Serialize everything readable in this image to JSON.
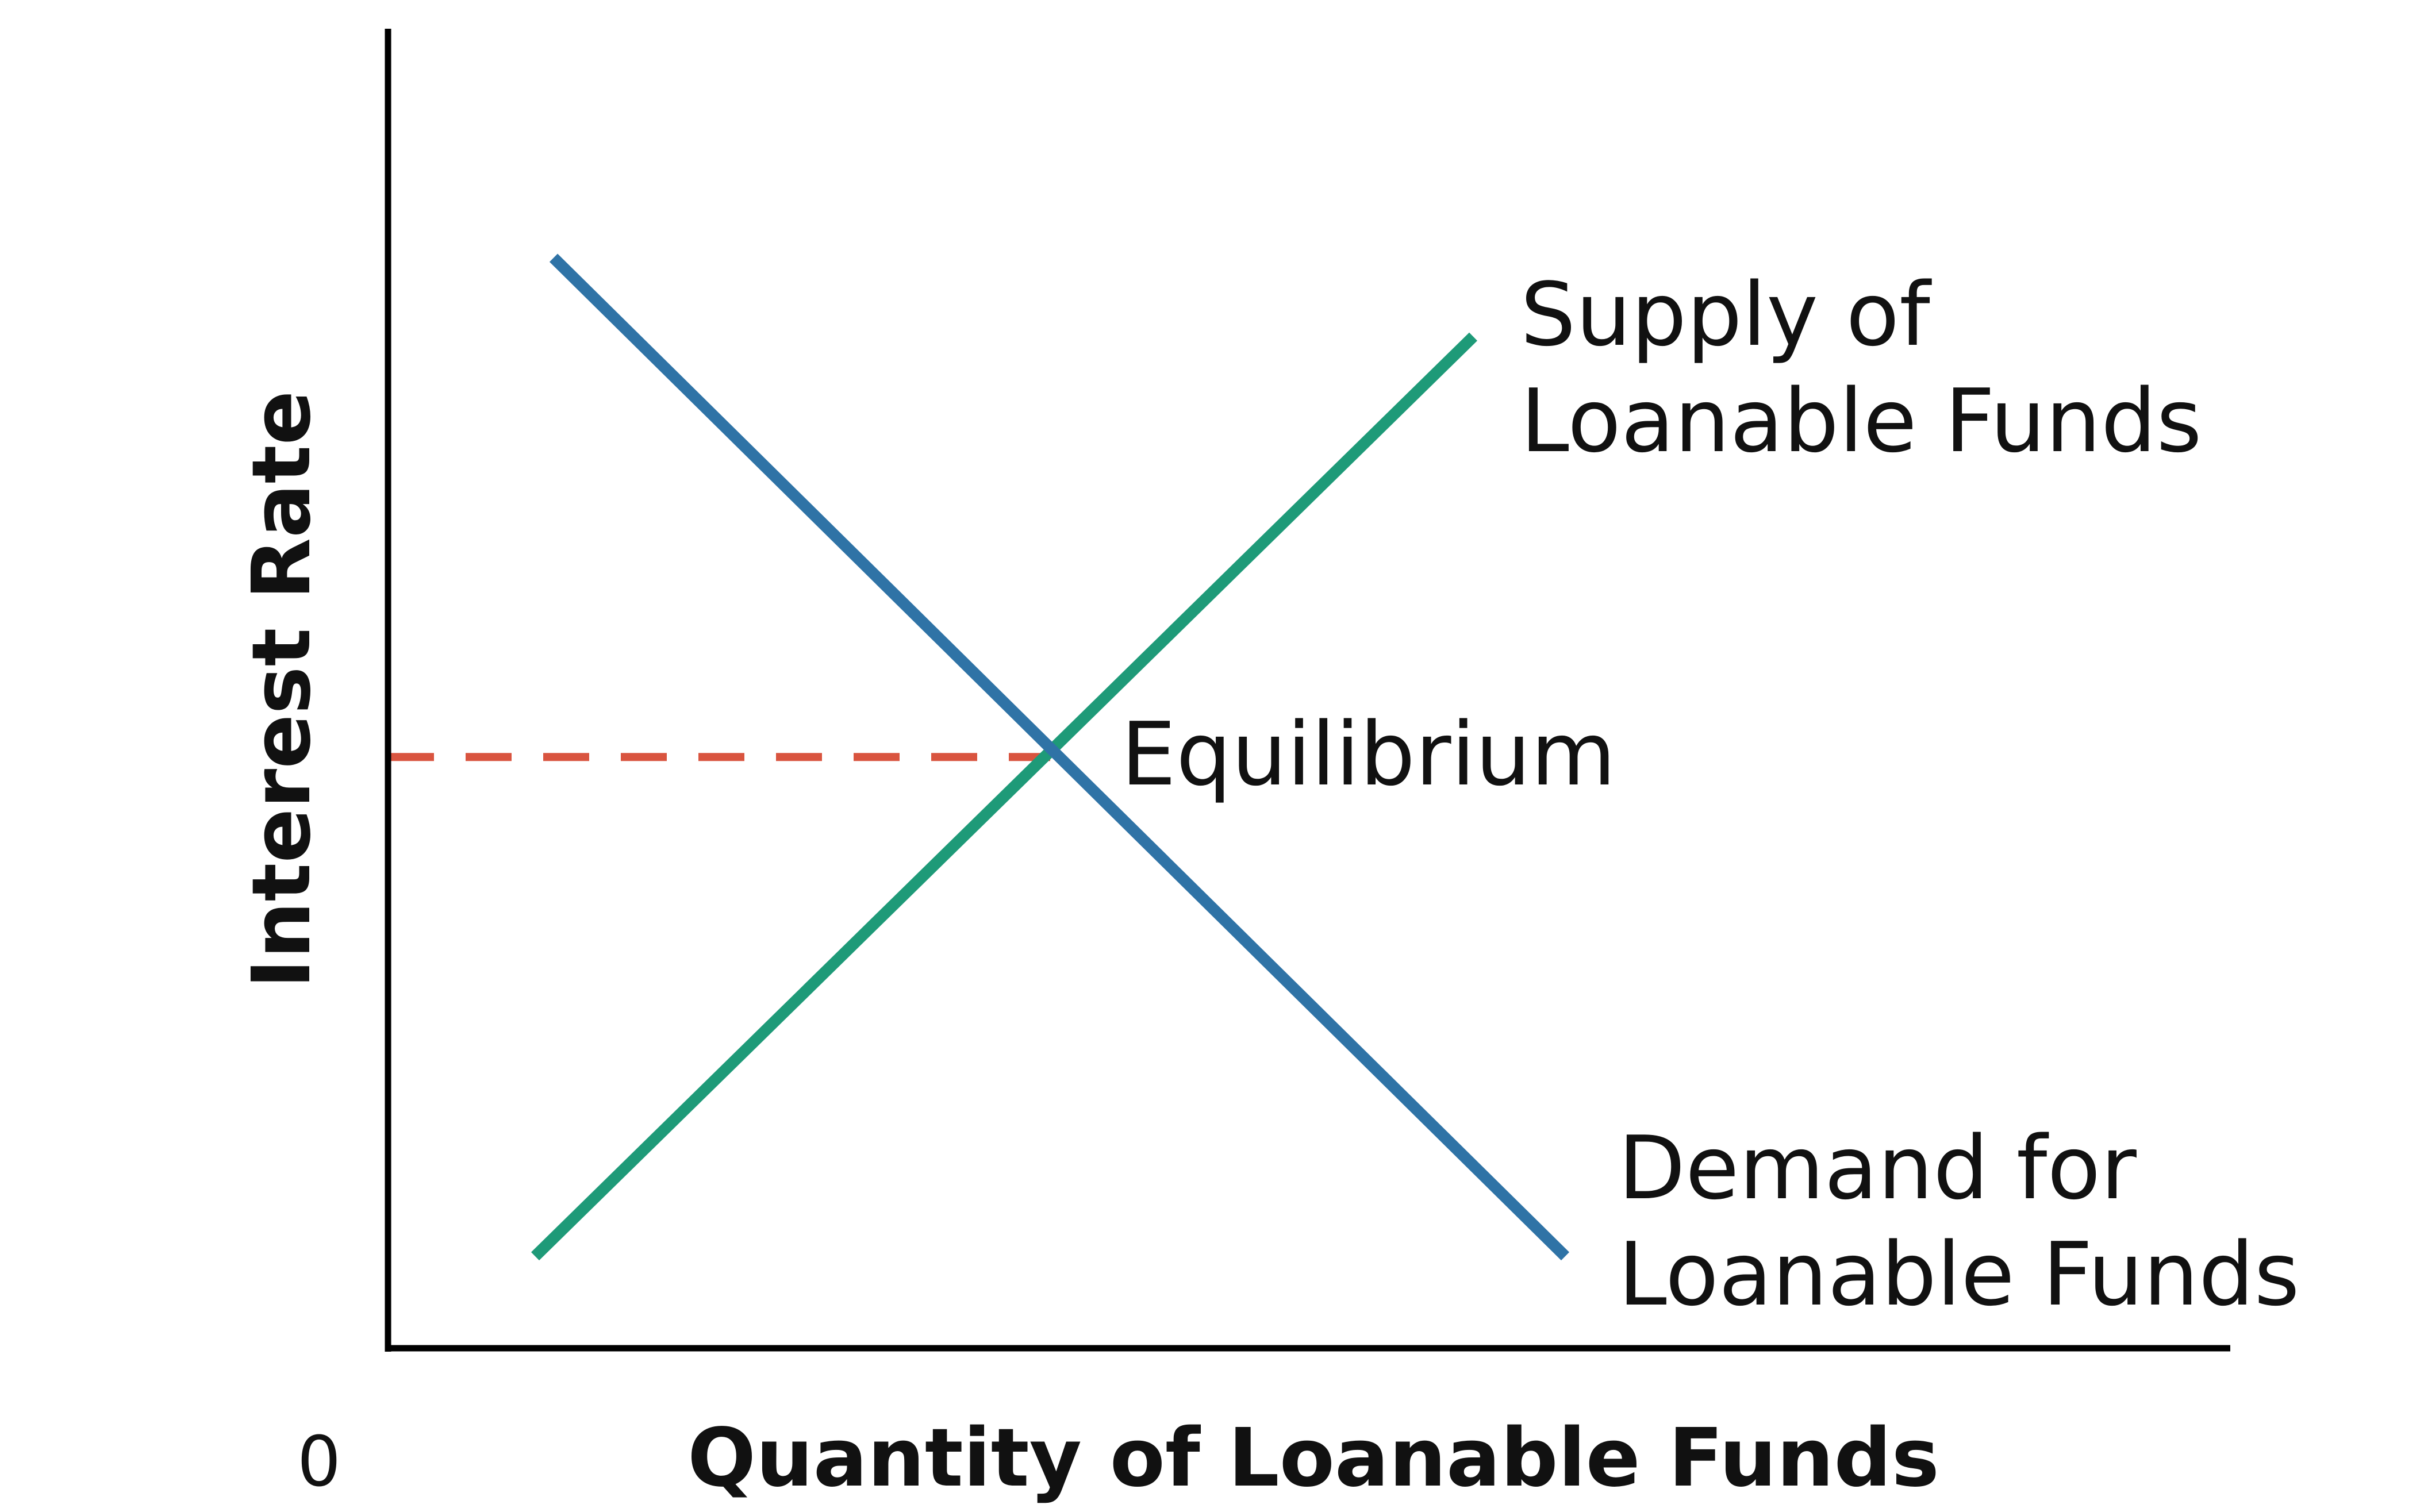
{
  "chart_data": {
    "type": "line",
    "title": "",
    "xlabel": "Quantity of Loanable Funds",
    "ylabel": "Interest Rate",
    "origin_label": "0",
    "xlim": [
      0,
      100
    ],
    "ylim": [
      0,
      100
    ],
    "grid": false,
    "legend": "none",
    "series": [
      {
        "label": "Supply of Loanable Funds",
        "color": "#1e9a78",
        "points": [
          [
            8,
            7
          ],
          [
            59,
            77
          ]
        ]
      },
      {
        "label": "Demand for Loanable Funds",
        "color": "#2f73a6",
        "points": [
          [
            9,
            83
          ],
          [
            64,
            7
          ]
        ]
      }
    ],
    "annotations": [
      {
        "text": "Equilibrium",
        "x": 36,
        "y": 45
      }
    ],
    "reference_line": {
      "y": 45,
      "from_x": 0,
      "to_x": 36,
      "style": "dashed",
      "color": "#d9543f"
    }
  }
}
